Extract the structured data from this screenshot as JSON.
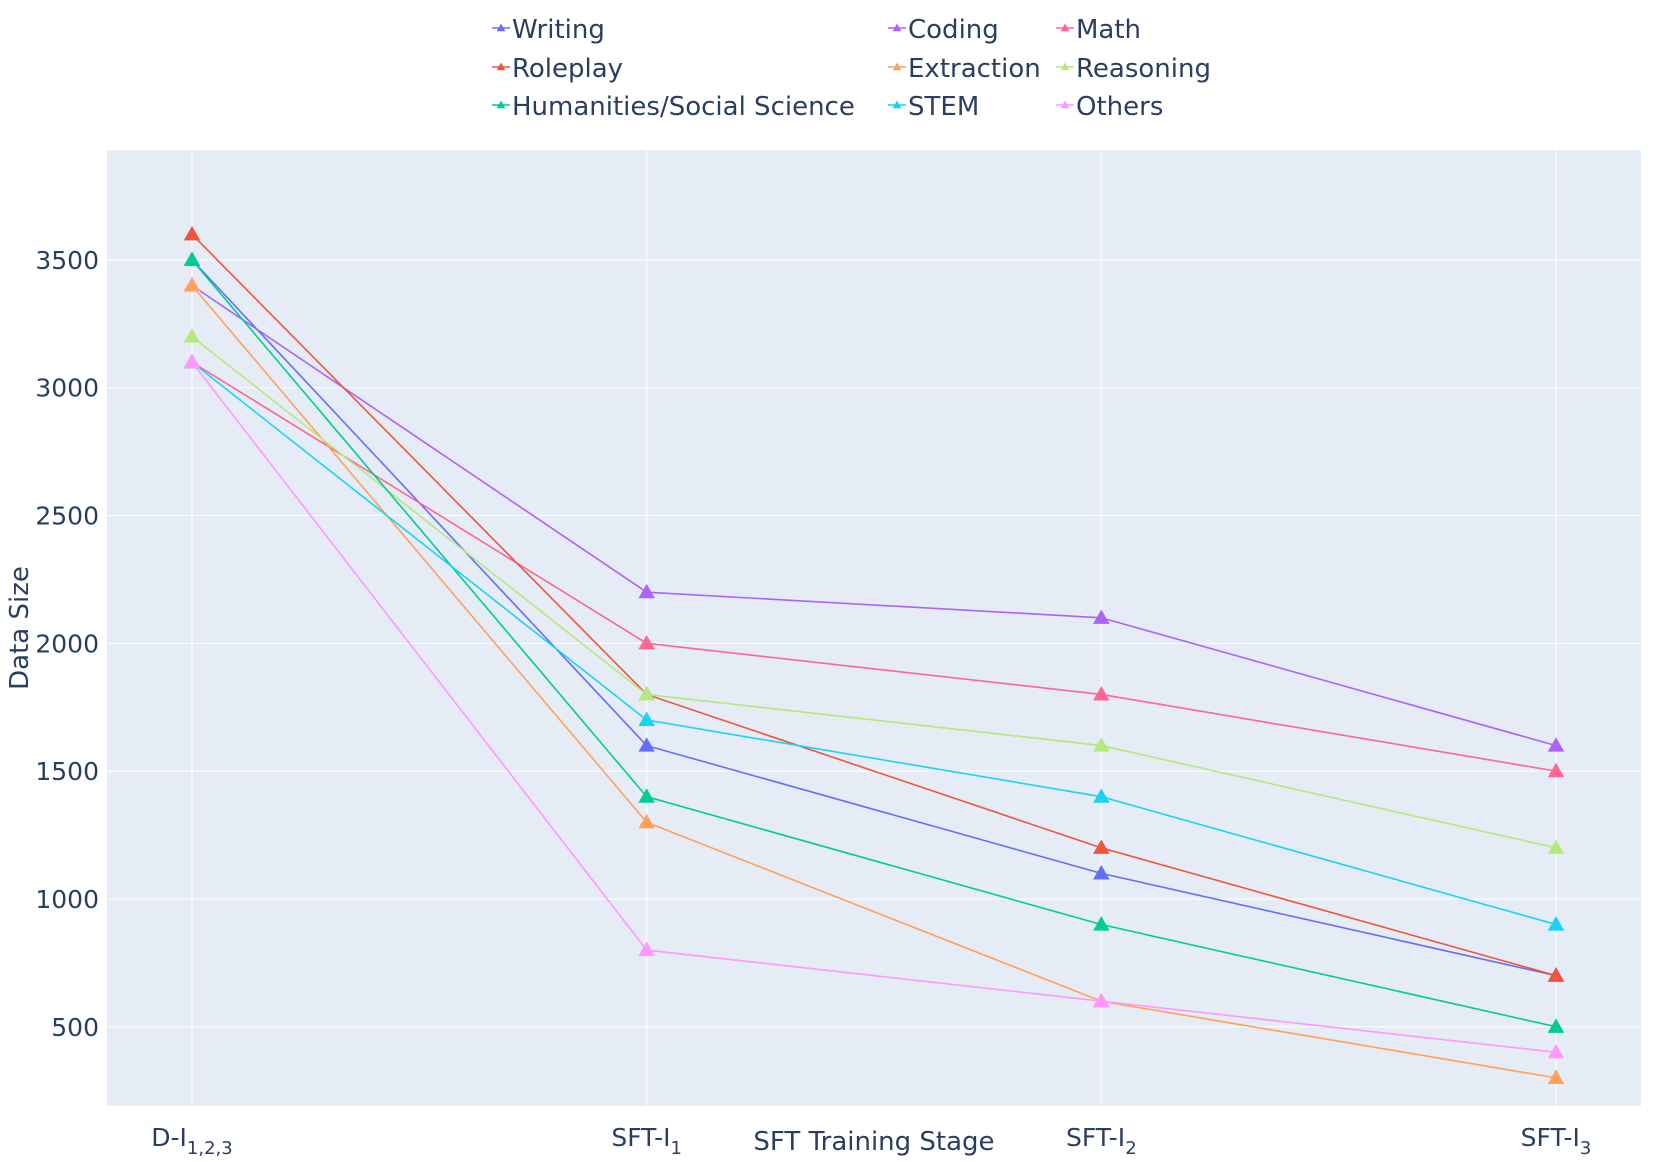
{
  "chart_data": {
    "type": "line",
    "xlabel": "SFT Training Stage",
    "ylabel": "Data Size",
    "categories": [
      {
        "base": "D-I",
        "sub": "1,2,3"
      },
      {
        "base": "SFT-I",
        "sub": "1"
      },
      {
        "base": "SFT-I",
        "sub": "2"
      },
      {
        "base": "SFT-I",
        "sub": "3"
      }
    ],
    "ylim": [
      190,
      3930
    ],
    "yticks": [
      500,
      1000,
      1500,
      2000,
      2500,
      3000,
      3500
    ],
    "grid": true,
    "marker": "triangle-up",
    "legend_position": "top",
    "plot_background": "#e5ecf6",
    "grid_color": "#ffffff",
    "series": [
      {
        "name": "Writing",
        "color": "#636efa",
        "values": [
          3500,
          1600,
          1100,
          700
        ]
      },
      {
        "name": "Coding",
        "color": "#ab63fa",
        "values": [
          3400,
          2200,
          2100,
          1600
        ]
      },
      {
        "name": "Math",
        "color": "#ff6692",
        "values": [
          3100,
          2000,
          1800,
          1500
        ]
      },
      {
        "name": "Roleplay",
        "color": "#ef553b",
        "values": [
          3600,
          1800,
          1200,
          700
        ]
      },
      {
        "name": "Extraction",
        "color": "#ffa15a",
        "values": [
          3400,
          1300,
          600,
          300
        ]
      },
      {
        "name": "Reasoning",
        "color": "#b6e880",
        "values": [
          3200,
          1800,
          1600,
          1200
        ]
      },
      {
        "name": "Humanities/Social Science",
        "color": "#00cc96",
        "values": [
          3500,
          1400,
          900,
          500
        ]
      },
      {
        "name": "STEM",
        "color": "#19d3f3",
        "values": [
          3100,
          1700,
          1400,
          900
        ]
      },
      {
        "name": "Others",
        "color": "#ff97ff",
        "values": [
          3100,
          800,
          600,
          400
        ]
      }
    ]
  }
}
